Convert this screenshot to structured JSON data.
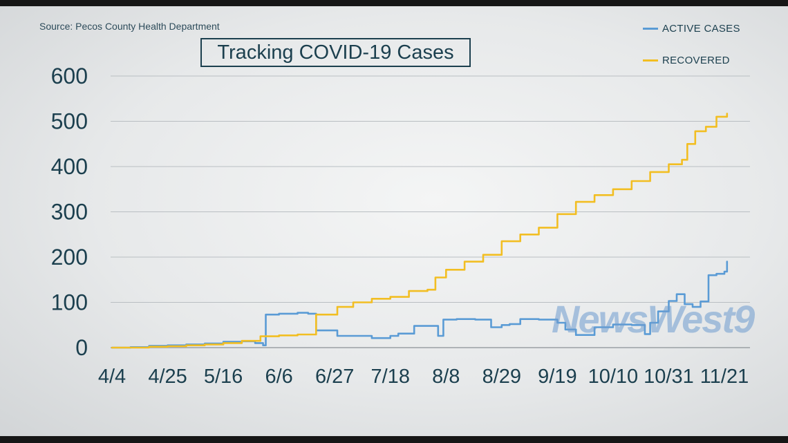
{
  "source": "Source: Pecos County Health Department",
  "title": "Tracking COVID-19 Cases",
  "watermark": "NewsWest9",
  "chart_data": {
    "type": "line",
    "title": "Tracking COVID-19 Cases",
    "xlabel": "",
    "ylabel": "",
    "ylim": [
      0,
      600
    ],
    "yticks": [
      0,
      100,
      200,
      300,
      400,
      500,
      600
    ],
    "xticks": [
      "4/4",
      "4/25",
      "5/16",
      "6/6",
      "6/27",
      "7/18",
      "8/8",
      "8/29",
      "9/19",
      "10/10",
      "10/31",
      "11/21"
    ],
    "grid": true,
    "legend_position": "top-right",
    "series": [
      {
        "name": "ACTIVE CASES",
        "color": "#5a9bd5",
        "points": [
          [
            "4/4",
            0
          ],
          [
            "4/11",
            1
          ],
          [
            "4/18",
            4
          ],
          [
            "4/25",
            5
          ],
          [
            "5/2",
            7
          ],
          [
            "5/9",
            9
          ],
          [
            "5/16",
            13
          ],
          [
            "5/23",
            14
          ],
          [
            "5/28",
            10
          ],
          [
            "5/31",
            5
          ],
          [
            "6/1",
            73
          ],
          [
            "6/6",
            75
          ],
          [
            "6/13",
            77
          ],
          [
            "6/17",
            75
          ],
          [
            "6/20",
            38
          ],
          [
            "6/26",
            38
          ],
          [
            "6/28",
            26
          ],
          [
            "7/4",
            26
          ],
          [
            "7/11",
            21
          ],
          [
            "7/18",
            26
          ],
          [
            "7/21",
            31
          ],
          [
            "7/27",
            48
          ],
          [
            "8/3",
            48
          ],
          [
            "8/5",
            26
          ],
          [
            "8/7",
            62
          ],
          [
            "8/12",
            63
          ],
          [
            "8/19",
            62
          ],
          [
            "8/25",
            45
          ],
          [
            "8/29",
            50
          ],
          [
            "9/1",
            52
          ],
          [
            "9/5",
            63
          ],
          [
            "9/12",
            62
          ],
          [
            "9/19",
            55
          ],
          [
            "9/22",
            40
          ],
          [
            "9/26",
            28
          ],
          [
            "10/3",
            45
          ],
          [
            "10/10",
            51
          ],
          [
            "10/17",
            50
          ],
          [
            "10/22",
            30
          ],
          [
            "10/24",
            55
          ],
          [
            "10/27",
            80
          ],
          [
            "10/31",
            103
          ],
          [
            "11/3",
            118
          ],
          [
            "11/6",
            96
          ],
          [
            "11/9",
            90
          ],
          [
            "11/12",
            102
          ],
          [
            "11/15",
            160
          ],
          [
            "11/18",
            163
          ],
          [
            "11/21",
            168
          ],
          [
            "11/22",
            190
          ]
        ]
      },
      {
        "name": "RECOVERED",
        "color": "#f2be22",
        "points": [
          [
            "4/4",
            0
          ],
          [
            "4/18",
            2
          ],
          [
            "4/25",
            3
          ],
          [
            "5/2",
            5
          ],
          [
            "5/9",
            7
          ],
          [
            "5/16",
            10
          ],
          [
            "5/23",
            15
          ],
          [
            "5/30",
            25
          ],
          [
            "6/6",
            27
          ],
          [
            "6/13",
            29
          ],
          [
            "6/19",
            29
          ],
          [
            "6/20",
            73
          ],
          [
            "6/27",
            73
          ],
          [
            "6/28",
            90
          ],
          [
            "7/4",
            100
          ],
          [
            "7/11",
            108
          ],
          [
            "7/18",
            112
          ],
          [
            "7/25",
            125
          ],
          [
            "8/1",
            128
          ],
          [
            "8/4",
            155
          ],
          [
            "8/8",
            172
          ],
          [
            "8/15",
            190
          ],
          [
            "8/22",
            205
          ],
          [
            "8/29",
            235
          ],
          [
            "9/5",
            250
          ],
          [
            "9/12",
            265
          ],
          [
            "9/19",
            295
          ],
          [
            "9/26",
            322
          ],
          [
            "10/3",
            337
          ],
          [
            "10/10",
            350
          ],
          [
            "10/17",
            368
          ],
          [
            "10/24",
            388
          ],
          [
            "10/31",
            405
          ],
          [
            "11/5",
            415
          ],
          [
            "11/7",
            450
          ],
          [
            "11/10",
            478
          ],
          [
            "11/14",
            488
          ],
          [
            "11/18",
            510
          ],
          [
            "11/22",
            517
          ]
        ]
      }
    ]
  }
}
